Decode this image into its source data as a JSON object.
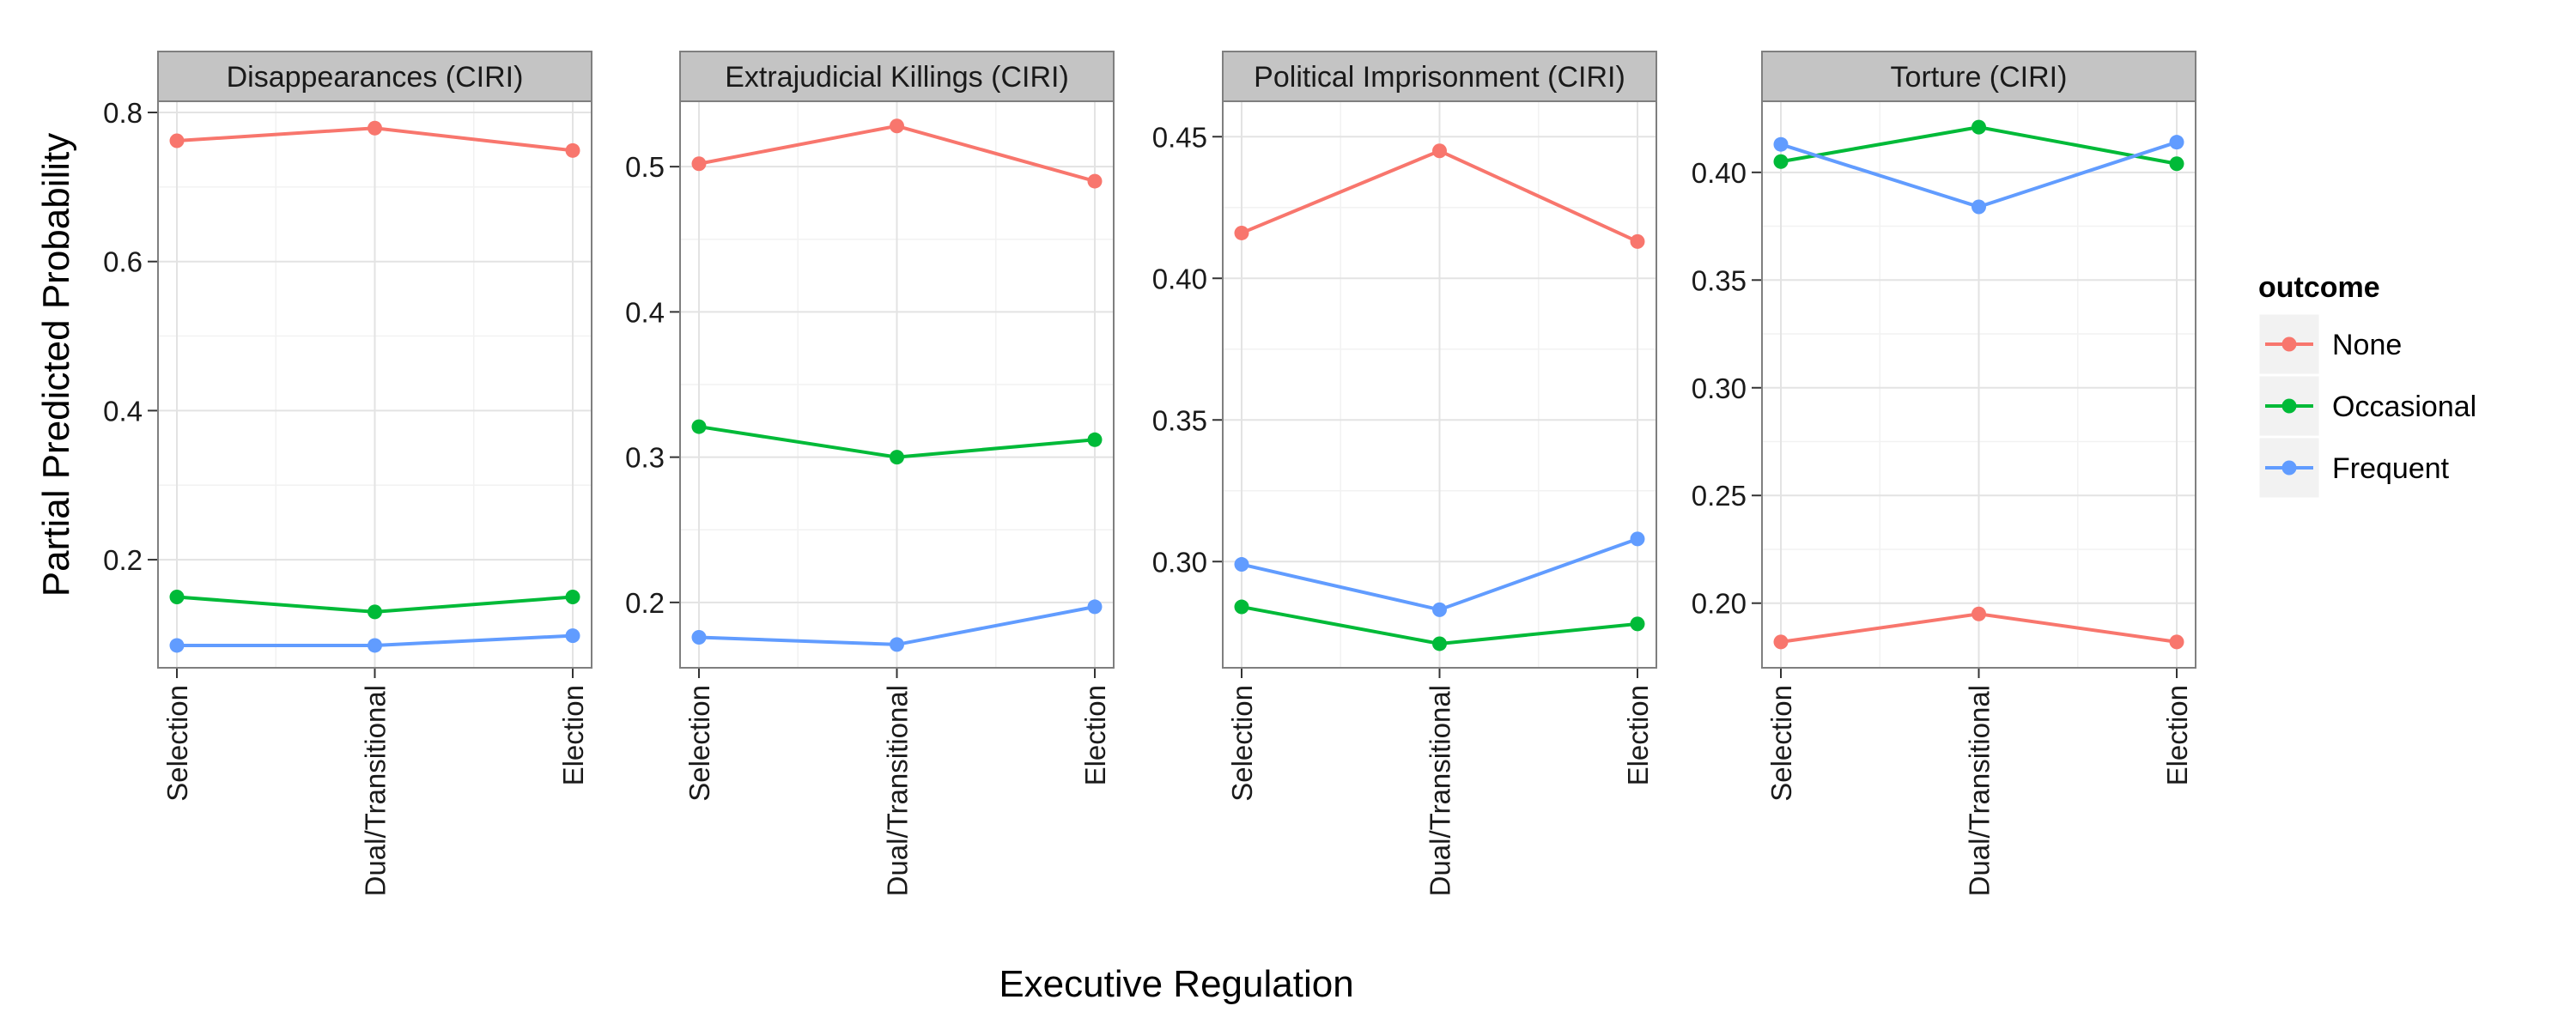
{
  "chart_data": {
    "type": "line",
    "x_label": "Executive Regulation",
    "y_label": "Partial Predicted Probability",
    "categories": [
      "Selection",
      "Dual/Transitional",
      "Election"
    ],
    "legend": {
      "title": "outcome",
      "position": "right",
      "entries": [
        "None",
        "Occasional",
        "Frequent"
      ]
    },
    "colors": {
      "None": "#F8766D",
      "Occasional": "#00BA38",
      "Frequent": "#619CFF"
    },
    "panels": [
      {
        "title": "Disappearances (CIRI)",
        "ylim": [
          0.055,
          0.815
        ],
        "yticks": [
          0.2,
          0.4,
          0.6,
          0.8
        ],
        "ytick_labels": [
          "0.2",
          "0.4",
          "0.6",
          "0.8"
        ],
        "series": [
          {
            "name": "None",
            "values": [
              0.762,
              0.779,
              0.749
            ]
          },
          {
            "name": "Occasional",
            "values": [
              0.15,
              0.13,
              0.15
            ]
          },
          {
            "name": "Frequent",
            "values": [
              0.085,
              0.085,
              0.098
            ]
          }
        ]
      },
      {
        "title": "Extrajudicial Killings (CIRI)",
        "ylim": [
          0.155,
          0.545
        ],
        "yticks": [
          0.2,
          0.3,
          0.4,
          0.5
        ],
        "ytick_labels": [
          "0.2",
          "0.3",
          "0.4",
          "0.5"
        ],
        "series": [
          {
            "name": "None",
            "values": [
              0.502,
              0.528,
              0.49
            ]
          },
          {
            "name": "Occasional",
            "values": [
              0.321,
              0.3,
              0.312
            ]
          },
          {
            "name": "Frequent",
            "values": [
              0.176,
              0.171,
              0.197
            ]
          }
        ]
      },
      {
        "title": "Political Imprisonment (CIRI)",
        "ylim": [
          0.2625,
          0.4625
        ],
        "yticks": [
          0.3,
          0.35,
          0.4,
          0.45
        ],
        "ytick_labels": [
          "0.30",
          "0.35",
          "0.40",
          "0.45"
        ],
        "series": [
          {
            "name": "None",
            "values": [
              0.416,
              0.445,
              0.413
            ]
          },
          {
            "name": "Occasional",
            "values": [
              0.284,
              0.271,
              0.278
            ]
          },
          {
            "name": "Frequent",
            "values": [
              0.299,
              0.283,
              0.308
            ]
          }
        ]
      },
      {
        "title": "Torture (CIRI)",
        "ylim": [
          0.17,
          0.433
        ],
        "yticks": [
          0.2,
          0.25,
          0.3,
          0.35,
          0.4
        ],
        "ytick_labels": [
          "0.20",
          "0.25",
          "0.30",
          "0.35",
          "0.40"
        ],
        "series": [
          {
            "name": "None",
            "values": [
              0.182,
              0.195,
              0.182
            ]
          },
          {
            "name": "Occasional",
            "values": [
              0.405,
              0.421,
              0.404
            ]
          },
          {
            "name": "Frequent",
            "values": [
              0.413,
              0.384,
              0.414
            ]
          }
        ]
      }
    ],
    "grid": true
  }
}
